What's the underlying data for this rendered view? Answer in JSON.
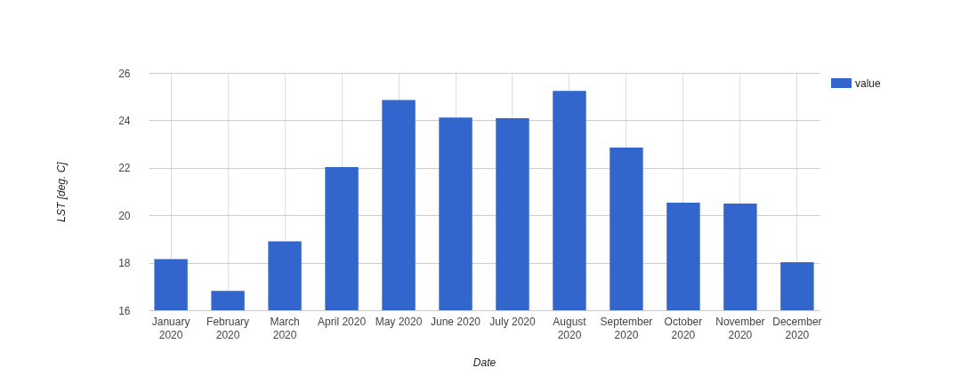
{
  "chart_data": {
    "type": "bar",
    "xlabel": "Date",
    "ylabel": "LST [deg. C]",
    "categories": [
      "January 2020",
      "February 2020",
      "March 2020",
      "April 2020",
      "May 2020",
      "June 2020",
      "July 2020",
      "August 2020",
      "September 2020",
      "October 2020",
      "November 2020",
      "December 2020"
    ],
    "series": [
      {
        "name": "value",
        "color": "#3366cc",
        "values": [
          18.15,
          16.81,
          18.9,
          22.03,
          24.86,
          24.12,
          24.09,
          25.24,
          22.85,
          20.53,
          20.49,
          18.02
        ]
      }
    ],
    "ylim": [
      16,
      26
    ],
    "yticks": [
      16,
      18,
      20,
      22,
      24,
      26
    ],
    "grid": true,
    "legend": "top right"
  }
}
